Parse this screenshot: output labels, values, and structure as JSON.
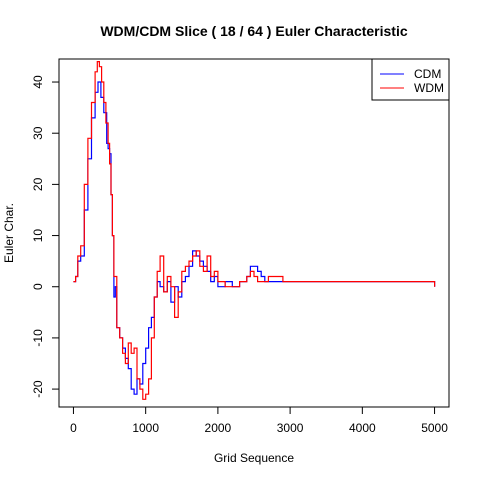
{
  "chart_data": {
    "type": "line",
    "title": "WDM/CDM Slice ( 18 / 64 ) Euler Characteristic",
    "xlabel": "Grid Sequence",
    "ylabel": "Euler Char.",
    "xlim": [
      -200,
      5200
    ],
    "ylim": [
      -23.5,
      44.5
    ],
    "xticks": [
      0,
      1000,
      2000,
      3000,
      4000,
      5000
    ],
    "yticks": [
      -20,
      -10,
      0,
      10,
      20,
      30,
      40
    ],
    "grid": false,
    "legend_position": "top-right",
    "series": [
      {
        "name": "CDM",
        "color": "#0000ff",
        "x": [
          0,
          30,
          60,
          100,
          150,
          200,
          250,
          300,
          340,
          380,
          420,
          460,
          480,
          500,
          520,
          540,
          560,
          580,
          600,
          640,
          680,
          720,
          760,
          800,
          840,
          880,
          920,
          960,
          1000,
          1040,
          1080,
          1120,
          1160,
          1200,
          1250,
          1300,
          1350,
          1400,
          1450,
          1500,
          1550,
          1600,
          1650,
          1700,
          1750,
          1800,
          1850,
          1900,
          1950,
          2000,
          2100,
          2200,
          2300,
          2400,
          2450,
          2500,
          2550,
          2600,
          2650,
          2700,
          2800,
          2900,
          3000,
          3500,
          4000,
          4500,
          4990,
          5000
        ],
        "y": [
          1,
          2,
          5,
          6,
          15,
          25,
          33,
          38,
          40,
          37,
          34,
          28,
          27,
          26,
          18,
          10,
          -2,
          0,
          -8,
          -10,
          -12,
          -14,
          -16,
          -20,
          -21,
          -18,
          -19,
          -15,
          -12,
          -8,
          -6,
          -2,
          1,
          0,
          -1,
          1,
          -3,
          0,
          -2,
          1,
          2,
          4,
          7,
          6,
          5,
          4,
          3,
          1,
          2,
          0,
          1,
          0,
          1,
          2,
          4,
          4,
          3,
          2,
          1,
          1,
          1,
          1,
          1,
          1,
          1,
          1,
          1,
          0
        ]
      },
      {
        "name": "WDM",
        "color": "#ff0000",
        "x": [
          0,
          30,
          60,
          100,
          150,
          200,
          250,
          300,
          330,
          360,
          390,
          420,
          450,
          480,
          500,
          520,
          540,
          560,
          600,
          640,
          680,
          720,
          760,
          800,
          840,
          880,
          920,
          960,
          1000,
          1040,
          1080,
          1120,
          1160,
          1200,
          1250,
          1300,
          1350,
          1400,
          1450,
          1500,
          1550,
          1600,
          1650,
          1700,
          1750,
          1800,
          1850,
          1900,
          1950,
          2000,
          2100,
          2200,
          2300,
          2400,
          2450,
          2500,
          2550,
          2600,
          2650,
          2700,
          2750,
          2800,
          2900,
          3000,
          3500,
          4000,
          4500,
          4990,
          5000
        ],
        "y": [
          1,
          2,
          6,
          8,
          20,
          29,
          36,
          42,
          44,
          43,
          40,
          36,
          32,
          28,
          24,
          18,
          10,
          2,
          -8,
          -10,
          -13,
          -15,
          -11,
          -13,
          -12,
          -18,
          -20,
          -22,
          -21,
          -18,
          -10,
          -2,
          3,
          6,
          -1,
          2,
          0,
          -6,
          -1,
          3,
          4,
          5,
          6,
          7,
          4,
          3,
          6,
          2,
          3,
          1,
          0,
          0,
          1,
          2,
          3,
          2,
          1,
          1,
          1,
          2,
          2,
          2,
          1,
          1,
          1,
          1,
          1,
          1,
          0
        ]
      }
    ]
  }
}
